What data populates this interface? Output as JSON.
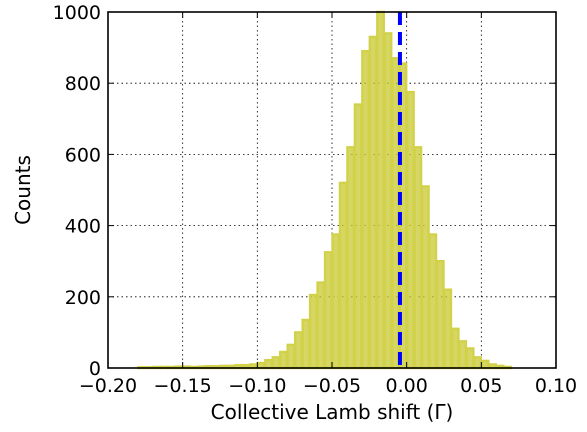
{
  "chart_data": {
    "type": "bar",
    "xlabel": "Collective Lamb shift (Γ)",
    "ylabel": "Counts",
    "xlim": [
      -0.2,
      0.1
    ],
    "ylim": [
      0,
      1000
    ],
    "x_ticks": [
      -0.2,
      -0.15,
      -0.1,
      -0.05,
      0.0,
      0.05,
      0.1
    ],
    "x_tick_labels": [
      "−0.20",
      "−0.15",
      "−0.10",
      "−0.05",
      "0.00",
      "0.05",
      "0.10"
    ],
    "y_ticks": [
      0,
      200,
      400,
      600,
      800,
      1000
    ],
    "y_tick_labels": [
      "0",
      "200",
      "400",
      "600",
      "800",
      "1000"
    ],
    "grid": true,
    "bin_width": 0.005,
    "bin_starts": [
      -0.18,
      -0.175,
      -0.17,
      -0.165,
      -0.16,
      -0.155,
      -0.15,
      -0.145,
      -0.14,
      -0.135,
      -0.13,
      -0.125,
      -0.12,
      -0.115,
      -0.11,
      -0.105,
      -0.1,
      -0.095,
      -0.09,
      -0.085,
      -0.08,
      -0.075,
      -0.07,
      -0.065,
      -0.06,
      -0.055,
      -0.05,
      -0.045,
      -0.04,
      -0.035,
      -0.03,
      -0.025,
      -0.02,
      -0.015,
      -0.01,
      -0.005,
      0.0,
      0.005,
      0.01,
      0.015,
      0.02,
      0.025,
      0.03,
      0.035,
      0.04,
      0.045,
      0.05,
      0.055,
      0.06,
      0.065
    ],
    "counts": [
      2,
      2,
      3,
      3,
      3,
      4,
      4,
      3,
      4,
      5,
      5,
      6,
      6,
      8,
      8,
      10,
      14,
      22,
      30,
      45,
      65,
      100,
      135,
      205,
      240,
      325,
      375,
      520,
      620,
      740,
      890,
      930,
      1000,
      940,
      870,
      855,
      775,
      620,
      510,
      375,
      300,
      220,
      110,
      75,
      55,
      30,
      20,
      10,
      6,
      3
    ],
    "bar_color": "#c8c832",
    "bar_edge_color": "#d2d24a",
    "annotations": [
      {
        "type": "vline",
        "x": -0.0045,
        "style": "dashed",
        "color": "#0000ff"
      }
    ]
  }
}
